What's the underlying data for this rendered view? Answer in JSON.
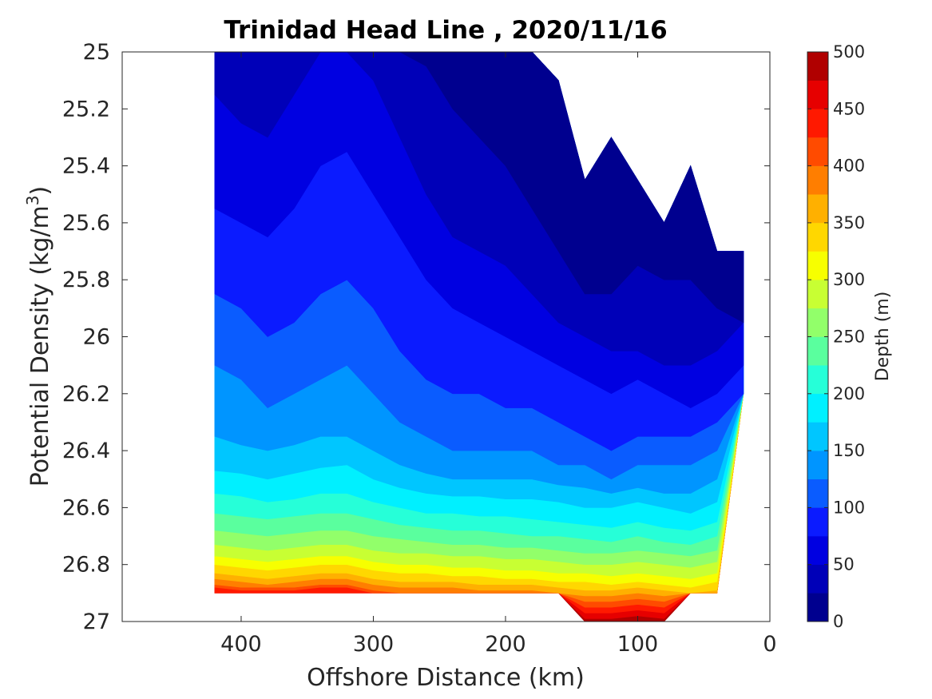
{
  "chart_data": {
    "type": "contour",
    "title": "Trinidad Head Line , 2020/11/16",
    "xlabel": "Offshore Distance (km)",
    "ylabel_main": "Potential Density (kg/m",
    "ylabel_sup": "3",
    "ylabel_close": ")",
    "xlim": [
      490,
      0
    ],
    "x_reversed": true,
    "ylim": [
      25,
      27
    ],
    "y_reversed": true,
    "x_ticks": [
      400,
      300,
      200,
      100,
      0
    ],
    "x_tick_labels": [
      "400",
      "300",
      "200",
      "100",
      "0"
    ],
    "y_ticks": [
      25,
      25.2,
      25.4,
      25.6,
      25.8,
      26,
      26.2,
      26.4,
      26.6,
      26.8,
      27
    ],
    "y_tick_labels": [
      "25",
      "25.2",
      "25.4",
      "25.6",
      "25.8",
      "26",
      "26.2",
      "26.4",
      "26.6",
      "26.8",
      "27"
    ],
    "colorbar": {
      "label": "Depth (m)",
      "min": 0,
      "max": 500,
      "ticks": [
        0,
        50,
        100,
        150,
        200,
        250,
        300,
        350,
        400,
        450,
        500
      ],
      "tick_labels": [
        "0",
        "50",
        "100",
        "150",
        "200",
        "250",
        "300",
        "350",
        "400",
        "450",
        "500"
      ],
      "level_step": 25,
      "colors": [
        "#00008f",
        "#0000b8",
        "#0000e1",
        "#0b1bff",
        "#0a5cff",
        "#0095ff",
        "#00c6ff",
        "#00f0ff",
        "#26ffd8",
        "#5aff9e",
        "#92ff6a",
        "#c8ff33",
        "#f7ff00",
        "#ffd700",
        "#ffb000",
        "#ff7e00",
        "#ff4b00",
        "#ff1900",
        "#e60000",
        "#b00000"
      ]
    },
    "x": [
      420,
      400,
      380,
      360,
      340,
      320,
      300,
      280,
      260,
      240,
      220,
      200,
      180,
      160,
      140,
      120,
      100,
      80,
      60,
      40,
      20
    ],
    "surface_sigma": [
      null,
      null,
      null,
      null,
      null,
      null,
      null,
      null,
      null,
      null,
      null,
      null,
      null,
      25.1,
      25.45,
      25.3,
      25.45,
      25.6,
      25.4,
      25.7,
      25.7
    ],
    "max_sigma": [
      26.9,
      26.9,
      26.9,
      26.9,
      26.9,
      26.9,
      26.9,
      26.9,
      26.9,
      26.9,
      26.9,
      26.9,
      26.9,
      26.9,
      27.0,
      27.0,
      27.0,
      27.0,
      26.9,
      26.9,
      26.2
    ],
    "isopycnal_depths": [
      {
        "depth": 25,
        "sigma": [
          null,
          null,
          null,
          null,
          null,
          null,
          null,
          null,
          25.05,
          25.2,
          25.3,
          25.4,
          25.55,
          25.7,
          25.85,
          25.85,
          25.75,
          25.8,
          25.8,
          25.9,
          25.95
        ]
      },
      {
        "depth": 50,
        "sigma": [
          25.15,
          25.25,
          25.3,
          25.15,
          25.0,
          25.0,
          25.1,
          25.3,
          25.5,
          25.65,
          25.7,
          25.75,
          25.85,
          25.95,
          26.0,
          26.05,
          26.05,
          26.1,
          26.1,
          26.05,
          25.95
        ]
      },
      {
        "depth": 75,
        "sigma": [
          25.55,
          25.6,
          25.65,
          25.55,
          25.4,
          25.35,
          25.5,
          25.65,
          25.8,
          25.9,
          25.95,
          26.0,
          26.05,
          26.1,
          26.15,
          26.2,
          26.15,
          26.2,
          26.25,
          26.2,
          26.1
        ]
      },
      {
        "depth": 100,
        "sigma": [
          25.85,
          25.9,
          26.0,
          25.95,
          25.85,
          25.8,
          25.9,
          26.05,
          26.15,
          26.2,
          26.2,
          26.25,
          26.25,
          26.3,
          26.35,
          26.4,
          26.35,
          26.35,
          26.35,
          26.3,
          26.2
        ]
      },
      {
        "depth": 125,
        "sigma": [
          26.1,
          26.15,
          26.25,
          26.2,
          26.15,
          26.1,
          26.2,
          26.3,
          26.35,
          26.4,
          26.4,
          26.4,
          26.4,
          26.45,
          26.45,
          26.5,
          26.45,
          26.45,
          26.45,
          26.4,
          26.3
        ]
      },
      {
        "depth": 150,
        "sigma": [
          26.35,
          26.38,
          26.4,
          26.38,
          26.35,
          26.35,
          26.4,
          26.45,
          26.48,
          26.5,
          26.5,
          26.5,
          26.5,
          26.52,
          26.53,
          26.55,
          26.53,
          26.55,
          26.55,
          26.5,
          26.4
        ]
      },
      {
        "depth": 175,
        "sigma": [
          26.47,
          26.48,
          26.5,
          26.48,
          26.46,
          26.45,
          26.5,
          26.53,
          26.55,
          26.56,
          26.56,
          26.57,
          26.57,
          26.58,
          26.6,
          26.6,
          26.58,
          26.6,
          26.62,
          26.58,
          26.5
        ]
      },
      {
        "depth": 200,
        "sigma": [
          26.55,
          26.56,
          26.58,
          26.57,
          26.55,
          26.55,
          26.58,
          26.6,
          26.62,
          26.62,
          26.63,
          26.63,
          26.64,
          26.65,
          26.66,
          26.67,
          26.65,
          26.67,
          26.68,
          26.65,
          26.58
        ]
      },
      {
        "depth": 225,
        "sigma": [
          26.62,
          26.63,
          26.64,
          26.63,
          26.62,
          26.62,
          26.64,
          26.66,
          26.67,
          26.68,
          26.68,
          26.69,
          26.7,
          26.7,
          26.71,
          26.72,
          26.7,
          26.72,
          26.73,
          26.7,
          26.64
        ]
      },
      {
        "depth": 250,
        "sigma": [
          26.68,
          26.69,
          26.7,
          26.69,
          26.68,
          26.68,
          26.7,
          26.71,
          26.72,
          26.73,
          26.73,
          26.74,
          26.74,
          26.75,
          26.76,
          26.76,
          26.75,
          26.76,
          26.77,
          26.75,
          26.7
        ]
      },
      {
        "depth": 275,
        "sigma": [
          26.73,
          26.74,
          26.75,
          26.74,
          26.73,
          26.73,
          26.75,
          26.76,
          26.76,
          26.77,
          26.77,
          26.78,
          26.78,
          26.79,
          26.8,
          26.8,
          26.79,
          26.8,
          26.81,
          26.79,
          26.75
        ]
      },
      {
        "depth": 300,
        "sigma": [
          26.77,
          26.78,
          26.79,
          26.78,
          26.77,
          26.77,
          26.79,
          26.8,
          26.8,
          26.81,
          26.81,
          26.82,
          26.82,
          26.83,
          26.83,
          26.84,
          26.83,
          26.84,
          26.85,
          26.83,
          26.79
        ]
      },
      {
        "depth": 325,
        "sigma": [
          26.8,
          26.81,
          26.82,
          26.81,
          26.8,
          26.8,
          26.82,
          26.83,
          26.83,
          26.84,
          26.84,
          26.85,
          26.85,
          26.86,
          26.86,
          26.87,
          26.86,
          26.87,
          26.88,
          26.86,
          26.82
        ]
      },
      {
        "depth": 350,
        "sigma": [
          26.83,
          26.84,
          26.85,
          26.84,
          26.83,
          26.83,
          26.85,
          26.86,
          26.86,
          26.86,
          26.87,
          26.87,
          26.87,
          26.88,
          26.89,
          26.89,
          26.88,
          26.89,
          26.9,
          26.89,
          26.85
        ]
      },
      {
        "depth": 375,
        "sigma": [
          26.85,
          26.86,
          26.87,
          26.86,
          26.85,
          26.85,
          26.87,
          26.88,
          26.88,
          26.88,
          26.89,
          26.89,
          26.89,
          26.9,
          26.91,
          26.91,
          26.9,
          26.91,
          26.92,
          26.91,
          26.87
        ]
      },
      {
        "depth": 400,
        "sigma": [
          26.87,
          26.88,
          26.88,
          26.88,
          26.87,
          26.87,
          26.89,
          26.9,
          26.9,
          26.9,
          26.9,
          26.9,
          26.9,
          26.92,
          26.93,
          26.93,
          26.92,
          26.93,
          26.94,
          26.93,
          26.89
        ]
      },
      {
        "depth": 425,
        "sigma": [
          26.88,
          26.89,
          26.89,
          26.89,
          26.88,
          26.88,
          26.9,
          26.91,
          26.91,
          26.91,
          26.91,
          26.91,
          26.91,
          26.94,
          26.95,
          26.95,
          26.94,
          26.95,
          26.96,
          26.95,
          26.91
        ]
      },
      {
        "depth": 450,
        "sigma": [
          26.9,
          26.9,
          26.9,
          26.9,
          26.9,
          26.9,
          26.91,
          26.92,
          26.92,
          26.92,
          26.92,
          26.92,
          26.92,
          26.96,
          26.97,
          26.97,
          26.96,
          26.97,
          26.98,
          26.97,
          26.93
        ]
      },
      {
        "depth": 475,
        "sigma": [
          26.91,
          26.91,
          26.91,
          26.91,
          26.91,
          26.91,
          26.92,
          26.93,
          26.93,
          26.93,
          26.93,
          26.93,
          26.93,
          26.98,
          26.99,
          26.99,
          26.98,
          26.99,
          27.0,
          26.99,
          26.95
        ]
      }
    ]
  }
}
